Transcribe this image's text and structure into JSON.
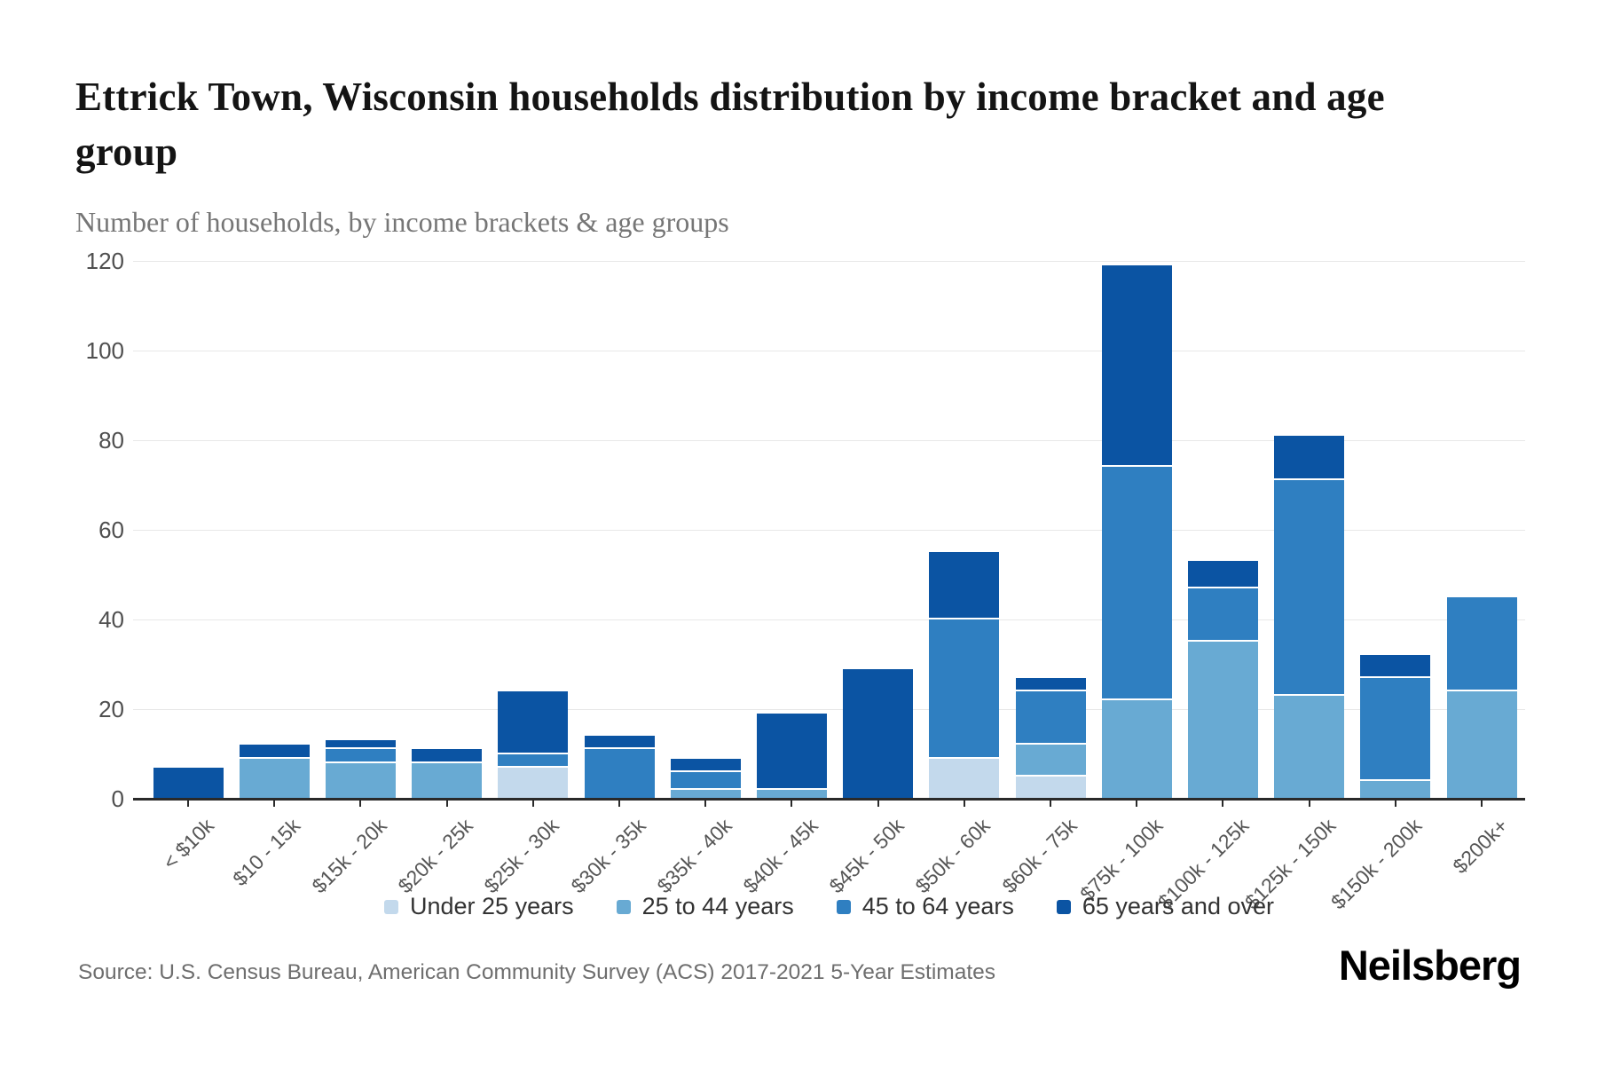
{
  "title": "Ettrick Town, Wisconsin households distribution by income bracket and age group",
  "subtitle": "Number of households, by income brackets & age groups",
  "source": "Source: U.S. Census Bureau, American Community Survey (ACS) 2017-2021 5-Year Estimates",
  "brand": "Neilsberg",
  "chart_data": {
    "type": "bar",
    "stacked": true,
    "title": "Ettrick Town, Wisconsin households distribution by income bracket and age group",
    "subtitle": "Number of households, by income brackets & age groups",
    "xlabel": "",
    "ylabel": "Number of households",
    "ylim": [
      0,
      120
    ],
    "yticks": [
      0,
      20,
      40,
      60,
      80,
      100,
      120
    ],
    "grid": true,
    "legend_position": "bottom",
    "categories": [
      "< $10k",
      "$10 - 15k",
      "$15k - 20k",
      "$20k - 25k",
      "$25k - 30k",
      "$30k - 35k",
      "$35k - 40k",
      "$40k - 45k",
      "$45k - 50k",
      "$50k - 60k",
      "$60k - 75k",
      "$75k - 100k",
      "$100k - 125k",
      "$125k - 150k",
      "$150k - 200k",
      "$200k+"
    ],
    "series": [
      {
        "name": "Under 25 years",
        "color": "#c3d9ec",
        "values": [
          0,
          0,
          0,
          0,
          7,
          0,
          0,
          0,
          0,
          9,
          5,
          0,
          0,
          0,
          0,
          0
        ]
      },
      {
        "name": "25 to 44 years",
        "color": "#68aad3",
        "values": [
          0,
          9,
          8,
          8,
          0,
          0,
          2,
          2,
          0,
          0,
          7,
          22,
          35,
          23,
          4,
          24
        ]
      },
      {
        "name": "45 to 64 years",
        "color": "#2f7fc1",
        "values": [
          0,
          0,
          3,
          0,
          3,
          11,
          4,
          0,
          0,
          31,
          12,
          52,
          12,
          48,
          23,
          21
        ]
      },
      {
        "name": "65 years and over",
        "color": "#0b54a3",
        "values": [
          7,
          3,
          2,
          3,
          14,
          3,
          3,
          17,
          29,
          15,
          3,
          45,
          6,
          10,
          5,
          0
        ]
      }
    ],
    "totals": [
      7,
      12,
      13,
      11,
      24,
      14,
      9,
      19,
      29,
      55,
      27,
      119,
      53,
      81,
      32,
      45
    ]
  }
}
